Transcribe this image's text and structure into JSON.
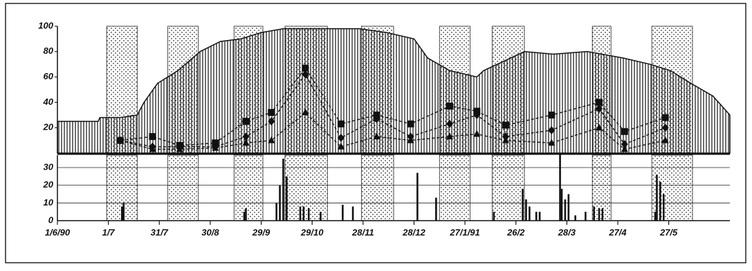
{
  "chart_data": [
    {
      "type": "line",
      "xlim": [
        0,
        396
      ],
      "ylim": [
        0,
        100
      ],
      "yticks": [
        20,
        40,
        60,
        80,
        100
      ],
      "shaded_periods": [
        [
          29,
          47
        ],
        [
          65,
          83
        ],
        [
          104,
          121
        ],
        [
          134,
          159
        ],
        [
          179,
          198
        ],
        [
          225,
          243
        ],
        [
          256,
          275
        ],
        [
          315,
          326
        ],
        [
          350,
          374
        ]
      ],
      "series": [
        {
          "kind": "area",
          "color": "#111111",
          "x": [
            0,
            24,
            25,
            37,
            47,
            51,
            59,
            71,
            84,
            96,
            108,
            120,
            133,
            157,
            178,
            194,
            210,
            218,
            231,
            247,
            251,
            259,
            275,
            292,
            312,
            333,
            349,
            361,
            373,
            386,
            396
          ],
          "values": [
            25,
            25,
            28,
            28,
            30,
            40,
            55,
            65,
            80,
            88,
            90,
            95,
            98,
            98,
            98,
            95,
            90,
            75,
            65,
            60,
            65,
            70,
            80,
            78,
            80,
            75,
            70,
            65,
            55,
            45,
            30
          ]
        },
        {
          "kind": "line",
          "marker": "square",
          "color": "#111111",
          "x": [
            37,
            56,
            72,
            93,
            111,
            126,
            146,
            167,
            188,
            208,
            231,
            247,
            264,
            291,
            319,
            334,
            358
          ],
          "values": [
            10,
            13,
            6,
            8,
            25,
            32,
            67,
            23,
            30,
            23,
            37,
            33,
            22,
            30,
            40,
            17,
            28
          ]
        },
        {
          "kind": "line",
          "marker": "circle",
          "color": "#111111",
          "x": [
            37,
            56,
            72,
            93,
            111,
            126,
            146,
            167,
            188,
            208,
            231,
            247,
            264,
            291,
            319,
            334,
            358
          ],
          "values": [
            10,
            5,
            5,
            5,
            13,
            25,
            62,
            12,
            27,
            13,
            23,
            30,
            13,
            18,
            35,
            7,
            20
          ]
        },
        {
          "kind": "line",
          "marker": "triangle",
          "color": "#111111",
          "x": [
            37,
            56,
            72,
            93,
            111,
            126,
            146,
            167,
            188,
            208,
            231,
            247,
            264,
            291,
            319,
            334,
            358
          ],
          "values": [
            10,
            3,
            3,
            4,
            8,
            10,
            32,
            5,
            13,
            10,
            13,
            15,
            10,
            8,
            20,
            3,
            10
          ]
        }
      ]
    },
    {
      "type": "bar",
      "color": "#111111",
      "xlim": [
        0,
        396
      ],
      "ylim": [
        0,
        37
      ],
      "yticks": [
        0,
        10,
        20,
        30
      ],
      "grid": true,
      "xticks": [
        {
          "value": 0,
          "label": "1/6/90"
        },
        {
          "value": 30,
          "label": "1/7"
        },
        {
          "value": 60,
          "label": "31/7"
        },
        {
          "value": 90,
          "label": "30/8"
        },
        {
          "value": 120,
          "label": "29/9"
        },
        {
          "value": 150,
          "label": "29/10"
        },
        {
          "value": 180,
          "label": "28/11"
        },
        {
          "value": 210,
          "label": "28/12"
        },
        {
          "value": 240,
          "label": "27/1/91"
        },
        {
          "value": 270,
          "label": "26/2"
        },
        {
          "value": 300,
          "label": "28/3"
        },
        {
          "value": 330,
          "label": "27/4"
        },
        {
          "value": 360,
          "label": "27/5"
        }
      ],
      "x": [
        38,
        39,
        110,
        111,
        129,
        131,
        133,
        135,
        143,
        145,
        148,
        155,
        168,
        174,
        212,
        223,
        257,
        274,
        276,
        278,
        282,
        284,
        296,
        297,
        299,
        301,
        305,
        311,
        316,
        319,
        321,
        352,
        353,
        355,
        357
      ],
      "values": [
        8,
        10,
        5,
        7,
        10,
        20,
        35,
        25,
        8,
        8,
        7,
        5,
        9,
        8,
        27,
        13,
        5,
        18,
        12,
        8,
        5,
        5,
        38,
        18,
        12,
        15,
        3,
        5,
        8,
        7,
        7,
        5,
        26,
        22,
        15
      ]
    }
  ]
}
